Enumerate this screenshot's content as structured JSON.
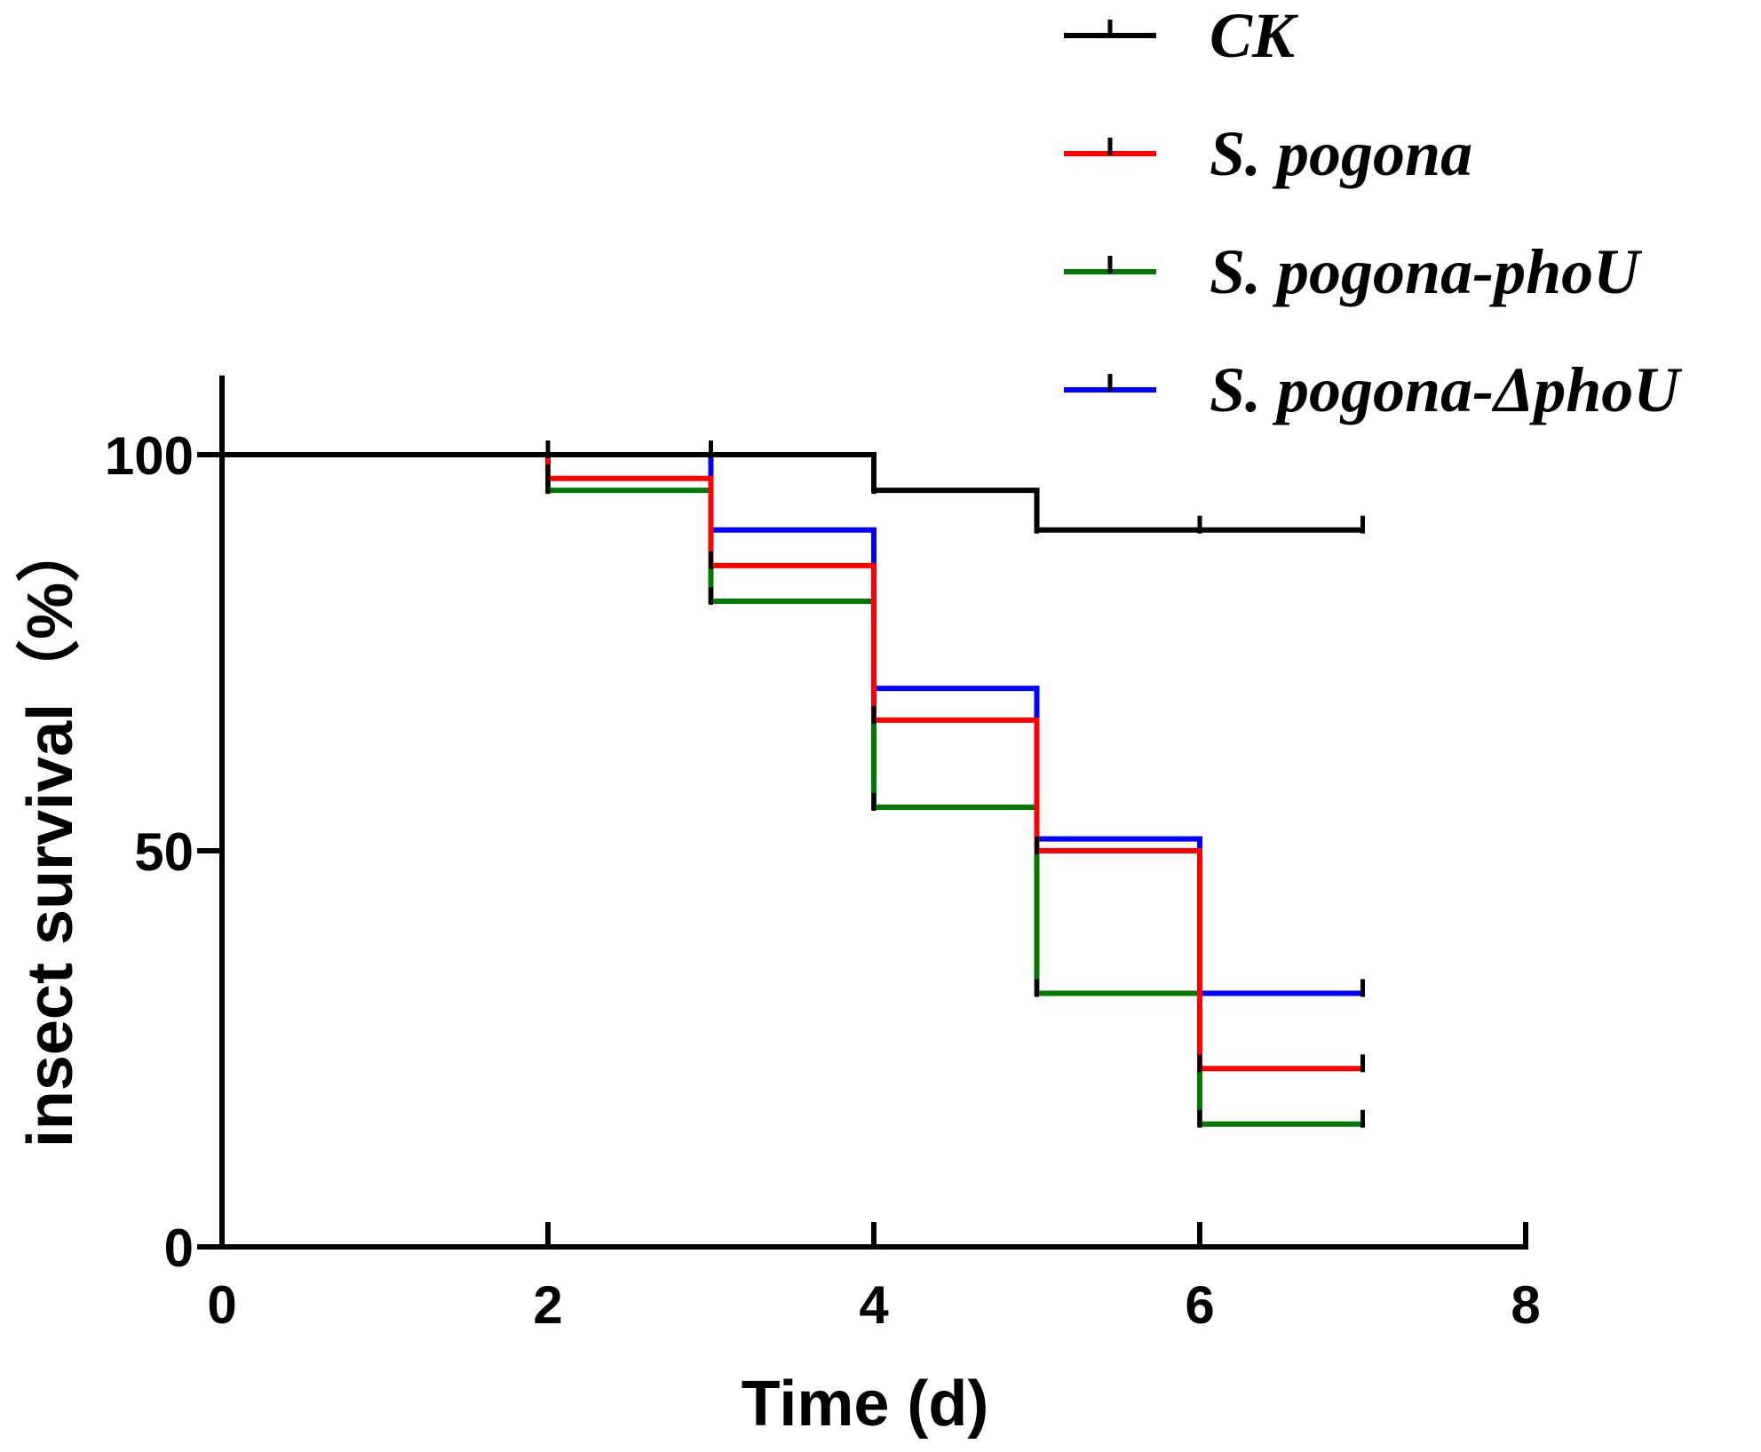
{
  "chart_data": {
    "type": "line",
    "subtype": "step (Kaplan-Meier survival)",
    "title": "",
    "xlabel": "Time (d)",
    "ylabel": "insect survival（%）",
    "xlim": [
      0,
      8
    ],
    "ylim": [
      0,
      110
    ],
    "x_ticks": [
      0,
      2,
      4,
      6,
      8
    ],
    "y_ticks": [
      0,
      50,
      100
    ],
    "x_tick_labels": [
      "0",
      "2",
      "4",
      "6",
      "8"
    ],
    "y_tick_labels": [
      "0",
      "50",
      "100"
    ],
    "grid": false,
    "legend_position": "top-right",
    "series": [
      {
        "name": "CK",
        "color": "#000000",
        "x": [
          0,
          2,
          3,
          4,
          5,
          6,
          7
        ],
        "y": [
          100,
          100,
          100,
          95.5,
          90.5,
          90.5,
          90.5
        ]
      },
      {
        "name": "S. pogona",
        "color": "#ff0000",
        "x": [
          0,
          2,
          3,
          4,
          5,
          6,
          7
        ],
        "y": [
          100,
          97,
          86,
          66.5,
          50,
          22.5,
          22.5
        ]
      },
      {
        "name": "S. pogona-phoU",
        "color": "#007a00",
        "x": [
          0,
          2,
          3,
          4,
          5,
          6,
          7
        ],
        "y": [
          100,
          95.5,
          81.5,
          55.5,
          32,
          15.5,
          15.5
        ]
      },
      {
        "name": "S. pogona-ΔphoU",
        "color": "#0000ff",
        "x": [
          0,
          2,
          3,
          4,
          5,
          6,
          7
        ],
        "y": [
          100,
          100,
          90.5,
          70.5,
          51.5,
          32,
          32
        ]
      }
    ]
  }
}
